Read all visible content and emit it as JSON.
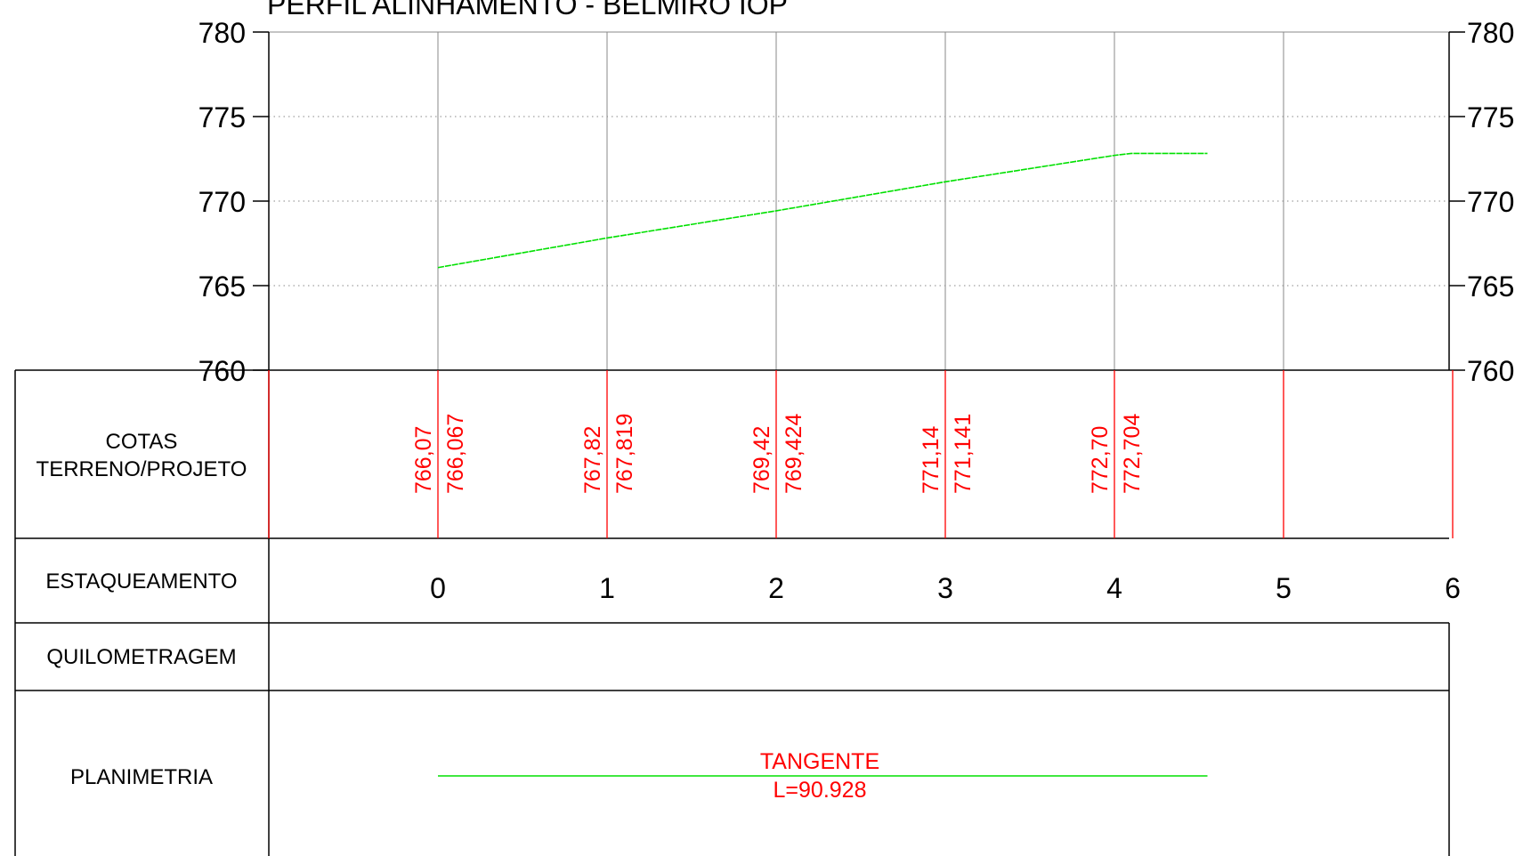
{
  "title": "PERFIL ALINHAMENTO - BELMIRO IOP",
  "chart_data": {
    "type": "line",
    "xlabel": "",
    "ylabel": "",
    "ylim": [
      760,
      780
    ],
    "xlim": [
      -1,
      6
    ],
    "yticks": [
      780,
      775,
      770,
      765,
      760
    ],
    "ytick_labels": [
      "780",
      "775",
      "770",
      "765",
      "760"
    ],
    "grid": true,
    "series": [
      {
        "color": "#00e000",
        "x": [
          0,
          1,
          2,
          3,
          4,
          4.1,
          4.55
        ],
        "y": [
          766.067,
          767.819,
          769.424,
          771.141,
          772.704,
          772.82,
          772.82
        ]
      }
    ]
  },
  "rows": {
    "cotas": {
      "label_line1": "COTAS",
      "label_line2": "TERRENO/PROJETO"
    },
    "estaqueamento": {
      "label": "ESTAQUEAMENTO"
    },
    "quilometragem": {
      "label": "QUILOMETRAGEM"
    },
    "planimetria": {
      "label": "PLANIMETRIA"
    }
  },
  "stations": [
    "0",
    "1",
    "2",
    "3",
    "4",
    "5",
    "6"
  ],
  "cotas": [
    {
      "terreno": "766,07",
      "projeto": "766,067"
    },
    {
      "terreno": "767,82",
      "projeto": "767,819"
    },
    {
      "terreno": "769,42",
      "projeto": "769,424"
    },
    {
      "terreno": "771,14",
      "projeto": "771,141"
    },
    {
      "terreno": "772,70",
      "projeto": "772,704"
    }
  ],
  "planimetria": {
    "type": "TANGENTE",
    "length": "L=90.928",
    "from": 0,
    "to": 4.55
  },
  "colors": {
    "profile": "#00e000",
    "annotation": "#ff0000",
    "grid": "#808080",
    "frame": "#000000"
  }
}
